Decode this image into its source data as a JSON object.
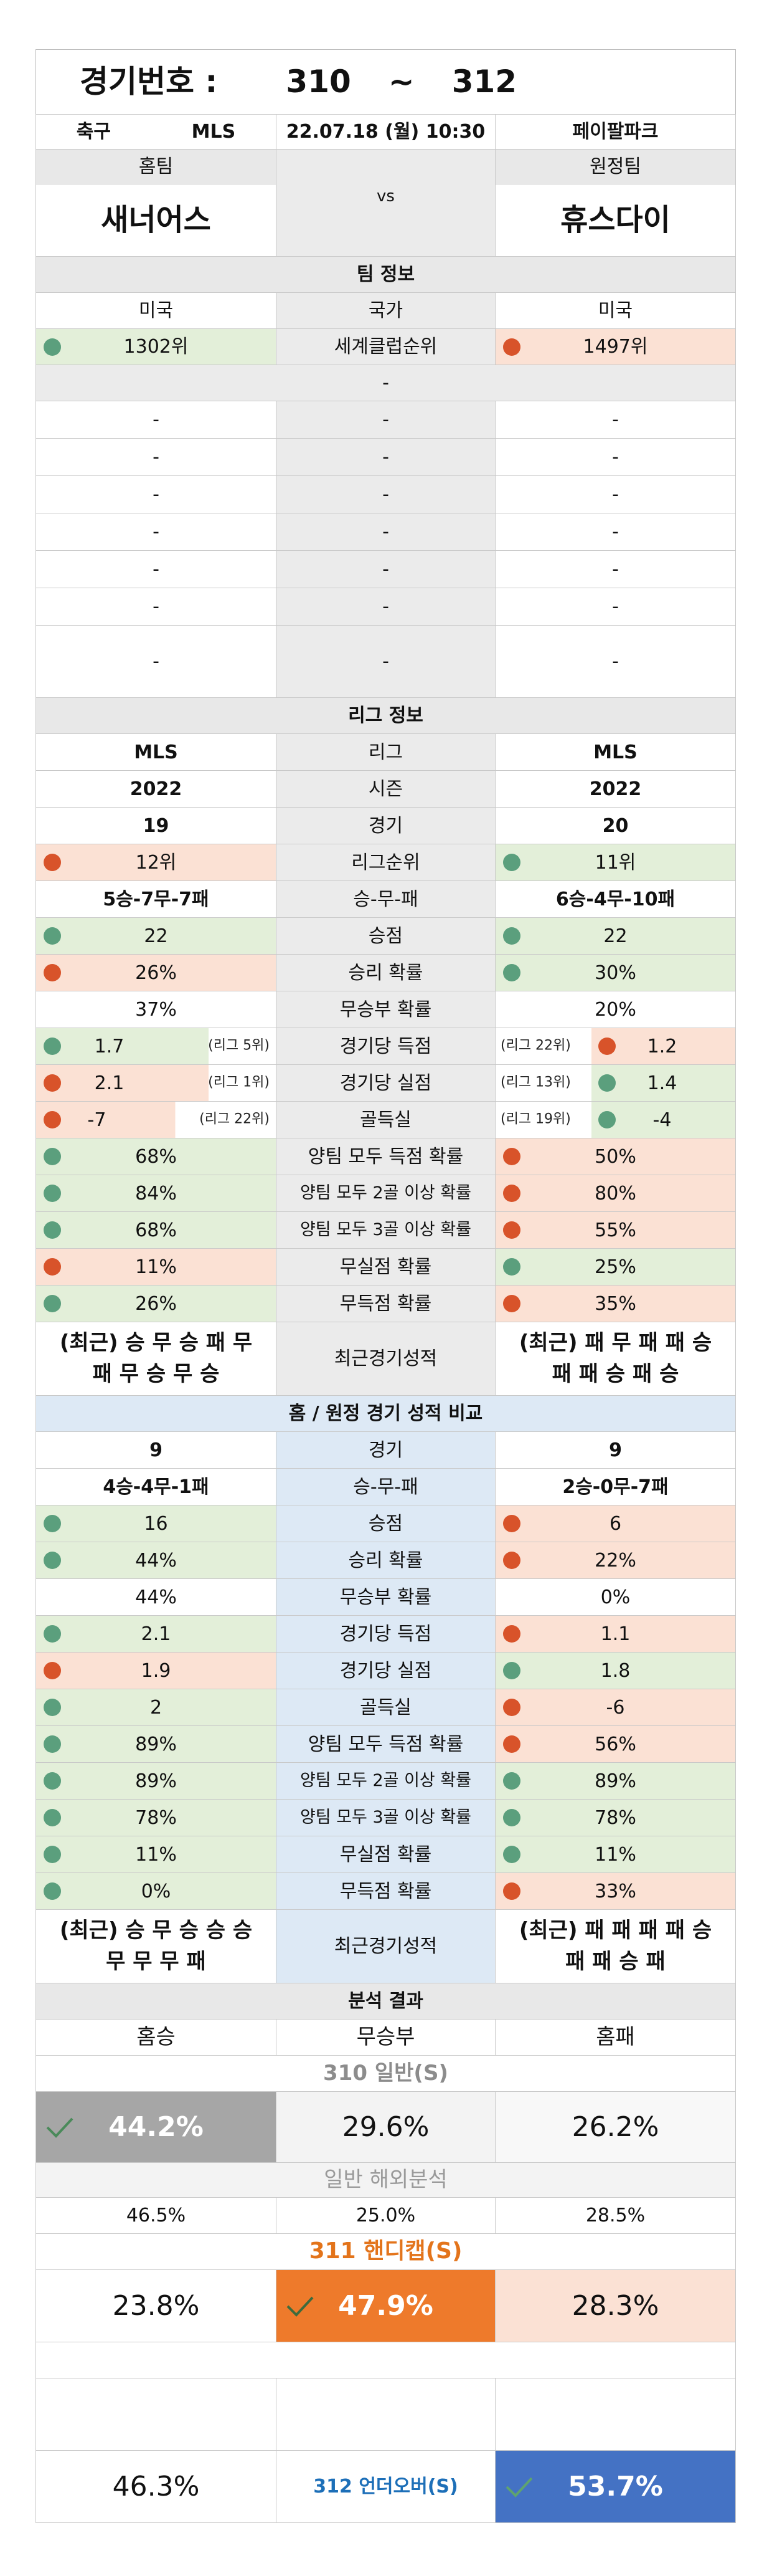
{
  "header": {
    "label": "경기번호 :",
    "from": "310",
    "tilde": "~",
    "to": "312"
  },
  "match": {
    "sport": "축구",
    "league": "MLS",
    "datetime": "22.07.18 (월) 10:30",
    "venue": "페이팔파크",
    "home_label": "홈팀",
    "away_label": "원정팀",
    "home_team": "새너어스",
    "vs": "vs",
    "away_team": "휴스다이"
  },
  "team_info": {
    "title": "팀 정보",
    "country_home": "미국",
    "country_label": "국가",
    "country_away": "미국",
    "rank_home": "1302위",
    "rank_label": "세계클럽순위",
    "rank_away": "1497위",
    "sep": "-",
    "dash": "-"
  },
  "league_info": {
    "title": "리그 정보",
    "rows": [
      {
        "home": "MLS",
        "label": "리그",
        "away": "MLS"
      },
      {
        "home": "2022",
        "label": "시즌",
        "away": "2022"
      },
      {
        "home": "19",
        "label": "경기",
        "away": "20"
      },
      {
        "home": "12위",
        "label": "리그순위",
        "away": "11위"
      },
      {
        "home": "5승-7무-7패",
        "label": "승-무-패",
        "away": "6승-4무-10패"
      },
      {
        "home": "22",
        "label": "승점",
        "away": "22"
      },
      {
        "home": "26%",
        "label": "승리 확률",
        "away": "30%"
      },
      {
        "home": "37%",
        "label": "무승부 확률",
        "away": "20%"
      },
      {
        "home": "1.7",
        "home_note": "(리그 5위)",
        "label": "경기당 득점",
        "away": "1.2",
        "away_note": "(리그 22위)"
      },
      {
        "home": "2.1",
        "home_note": "(리그 1위)",
        "label": "경기당 실점",
        "away": "1.4",
        "away_note": "(리그 13위)"
      },
      {
        "home": "-7",
        "home_note": "(리그 22위)",
        "label": "골득실",
        "away": "-4",
        "away_note": "(리그 19위)"
      },
      {
        "home": "68%",
        "label": "양팀 모두 득점 확률",
        "away": "50%"
      },
      {
        "home": "84%",
        "label": "양팀 모두 2골 이상 확률",
        "away": "80%"
      },
      {
        "home": "68%",
        "label": "양팀 모두 3골 이상 확률",
        "away": "55%"
      },
      {
        "home": "11%",
        "label": "무실점 확률",
        "away": "25%"
      },
      {
        "home": "26%",
        "label": "무득점 확률",
        "away": "35%"
      }
    ],
    "recent_home_1": "(최근) 승 무 승 패 무",
    "recent_home_2": "패 무 승 무 승",
    "recent_label": "최근경기성적",
    "recent_away_1": "(최근) 패 무 패 패 승",
    "recent_away_2": "패 패 승 패 승"
  },
  "homeaway": {
    "title": "홈 / 원정 경기 성적 비교",
    "rows": [
      {
        "home": "9",
        "label": "경기",
        "away": "9"
      },
      {
        "home": "4승-4무-1패",
        "label": "승-무-패",
        "away": "2승-0무-7패"
      },
      {
        "home": "16",
        "label": "승점",
        "away": "6"
      },
      {
        "home": "44%",
        "label": "승리 확률",
        "away": "22%"
      },
      {
        "home": "44%",
        "label": "무승부 확률",
        "away": "0%"
      },
      {
        "home": "2.1",
        "label": "경기당 득점",
        "away": "1.1"
      },
      {
        "home": "1.9",
        "label": "경기당 실점",
        "away": "1.8"
      },
      {
        "home": "2",
        "label": "골득실",
        "away": "-6"
      },
      {
        "home": "89%",
        "label": "양팀 모두 득점 확률",
        "away": "56%"
      },
      {
        "home": "89%",
        "label": "양팀 모두 2골 이상 확률",
        "away": "89%"
      },
      {
        "home": "78%",
        "label": "양팀 모두 3골 이상 확률",
        "away": "78%"
      },
      {
        "home": "11%",
        "label": "무실점 확률",
        "away": "11%"
      },
      {
        "home": "0%",
        "label": "무득점 확률",
        "away": "33%"
      }
    ],
    "recent_home_1": "(최근) 승 무 승 승 승",
    "recent_home_2": "무 무 무 패",
    "recent_label": "최근경기성적",
    "recent_away_1": "(최근) 패 패 패 패 승",
    "recent_away_2": "패 패 승 패"
  },
  "analysis": {
    "title": "분석 결과",
    "col_home": "홈승",
    "col_draw": "무승부",
    "col_away": "홈패",
    "general_title": "310 일반(S)",
    "general_home": "44.2%",
    "general_draw": "29.6%",
    "general_away": "26.2%",
    "overseas_title": "일반 해외분석",
    "overseas_home": "46.5%",
    "overseas_draw": "25.0%",
    "overseas_away": "28.5%",
    "handicap_title": "311 핸디캡(S)",
    "handicap_home": "23.8%",
    "handicap_draw": "47.9%",
    "handicap_away": "28.3%",
    "uo_under": "46.3%",
    "uo_title": "312 언더오버(S)",
    "uo_over": "53.7%"
  },
  "colors": {
    "green_bg": "#e3efd9",
    "red_bg": "#fbe1d4",
    "green_dot": "#5b9f7d",
    "red_dot": "#d8532a",
    "selected_gray": "#a6a6a6",
    "selected_orange": "#ee7a2b",
    "selected_blue": "#4472c4"
  }
}
